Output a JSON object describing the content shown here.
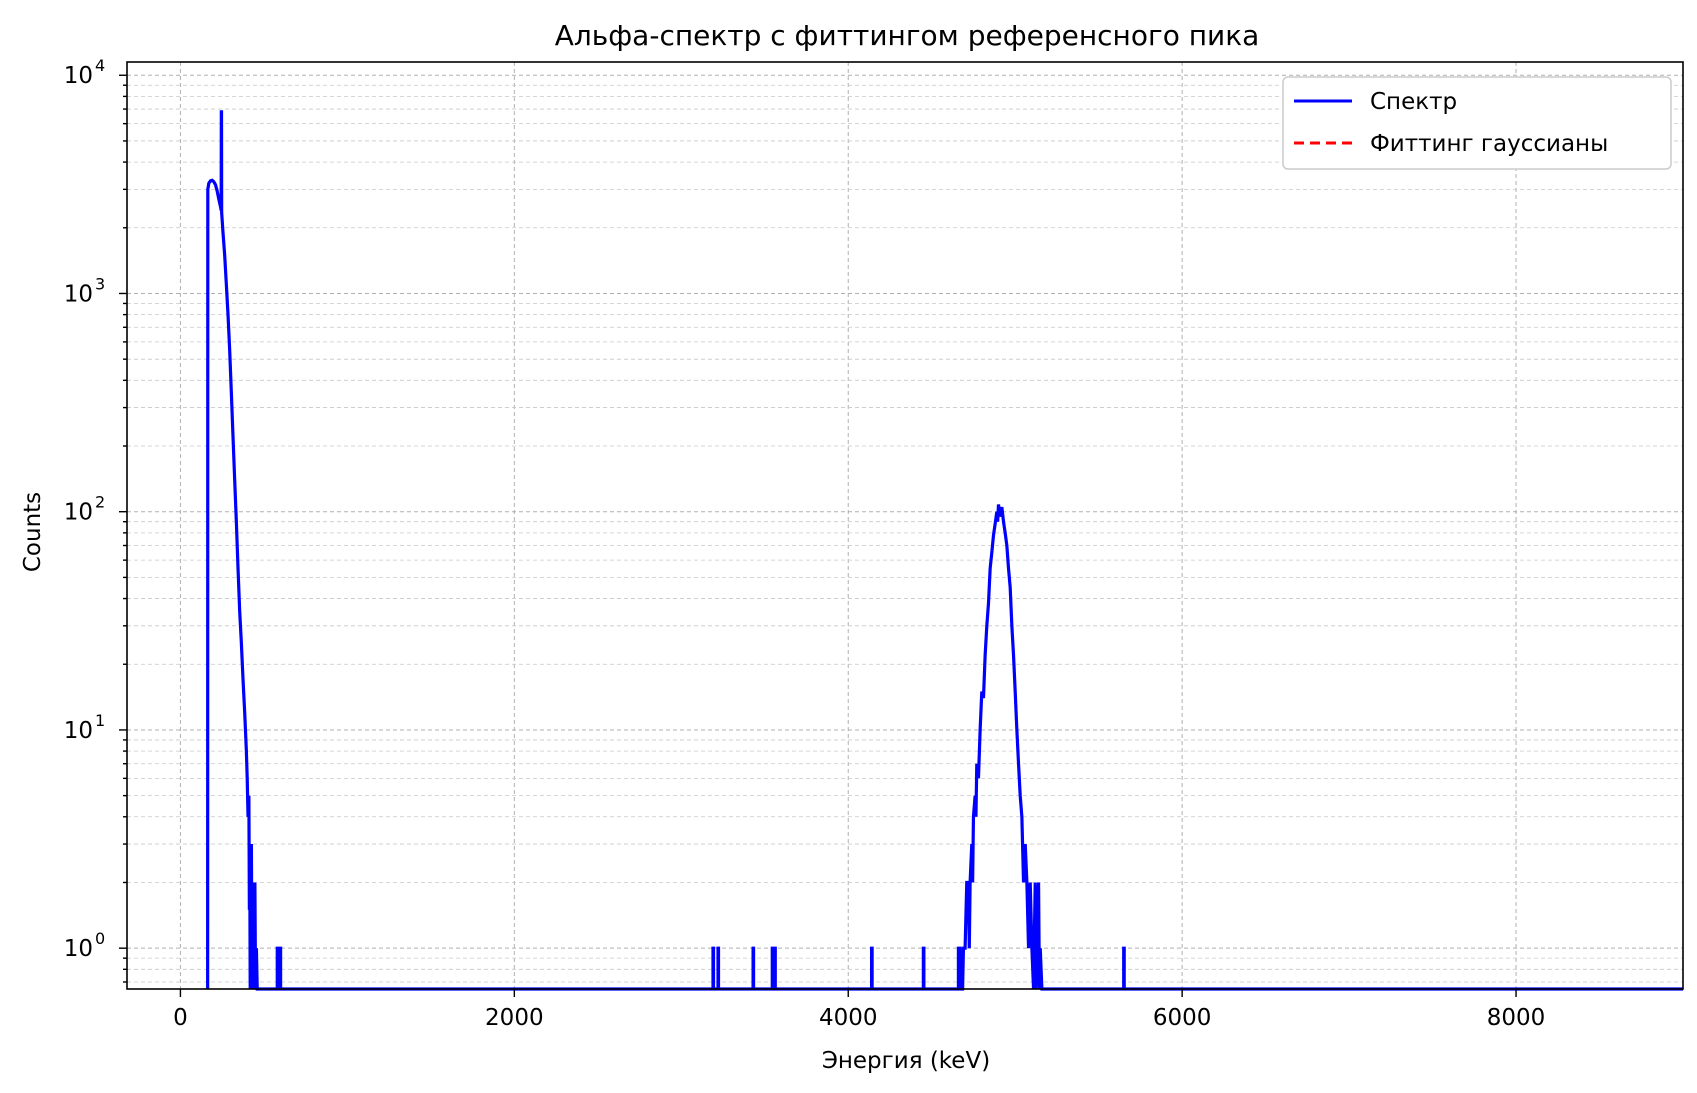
{
  "chart_data": {
    "type": "line",
    "title": "Альфа-спектр с фиттингом референсного пика",
    "xlabel": "Энергия (keV)",
    "ylabel": "Counts",
    "yscale": "log",
    "xlim": [
      -320,
      9000
    ],
    "ylim": [
      0.65,
      11500
    ],
    "xticks": [
      0,
      2000,
      4000,
      6000,
      8000
    ],
    "xtick_labels": [
      "0",
      "2000",
      "4000",
      "6000",
      "8000"
    ],
    "yticks": [
      1,
      10,
      100,
      1000,
      10000
    ],
    "ytick_labels": [
      {
        "base": "10",
        "exp": "0"
      },
      {
        "base": "10",
        "exp": "1"
      },
      {
        "base": "10",
        "exp": "2"
      },
      {
        "base": "10",
        "exp": "3"
      },
      {
        "base": "10",
        "exp": "4"
      }
    ],
    "grid": true,
    "legend_position": "top-right",
    "series": [
      {
        "name": "Спектр",
        "color": "#0000ff",
        "style": "solid",
        "points": [
          [
            163,
            0.65
          ],
          [
            164,
            3000
          ],
          [
            170,
            3200
          ],
          [
            180,
            3280
          ],
          [
            190,
            3300
          ],
          [
            200,
            3250
          ],
          [
            210,
            3150
          ],
          [
            220,
            2950
          ],
          [
            230,
            2700
          ],
          [
            240,
            2500
          ],
          [
            244,
            2400
          ],
          [
            245,
            6800
          ],
          [
            246,
            6800
          ],
          [
            247,
            2350
          ],
          [
            255,
            1900
          ],
          [
            265,
            1500
          ],
          [
            275,
            1100
          ],
          [
            285,
            800
          ],
          [
            295,
            550
          ],
          [
            305,
            350
          ],
          [
            315,
            220
          ],
          [
            325,
            140
          ],
          [
            335,
            90
          ],
          [
            345,
            55
          ],
          [
            355,
            35
          ],
          [
            365,
            25
          ],
          [
            375,
            17
          ],
          [
            385,
            12
          ],
          [
            395,
            8
          ],
          [
            400,
            6
          ],
          [
            405,
            4
          ],
          [
            410,
            5
          ],
          [
            413,
            1.5
          ],
          [
            415,
            3
          ],
          [
            418,
            0.65
          ],
          [
            420,
            2
          ],
          [
            423,
            0.65
          ],
          [
            425,
            3
          ],
          [
            428,
            1
          ],
          [
            432,
            2
          ],
          [
            436,
            0.65
          ],
          [
            440,
            1
          ],
          [
            443,
            0.65
          ],
          [
            446,
            2
          ],
          [
            450,
            0.65
          ],
          [
            455,
            1
          ],
          [
            460,
            0.65
          ],
          [
            470,
            0.65
          ],
          [
            580,
            0.65
          ],
          [
            580,
            1
          ],
          [
            585,
            1
          ],
          [
            585,
            0.65
          ],
          [
            595,
            0.65
          ],
          [
            595,
            1
          ],
          [
            600,
            1
          ],
          [
            600,
            0.65
          ],
          [
            3190,
            0.65
          ],
          [
            3190,
            1
          ],
          [
            3193,
            1
          ],
          [
            3193,
            0.65
          ],
          [
            3220,
            0.65
          ],
          [
            3220,
            1
          ],
          [
            3223,
            1
          ],
          [
            3223,
            0.65
          ],
          [
            3430,
            0.65
          ],
          [
            3430,
            1
          ],
          [
            3433,
            1
          ],
          [
            3433,
            0.65
          ],
          [
            3545,
            0.65
          ],
          [
            3545,
            1
          ],
          [
            3548,
            1
          ],
          [
            3548,
            0.65
          ],
          [
            3560,
            0.65
          ],
          [
            3560,
            1
          ],
          [
            3563,
            1
          ],
          [
            3563,
            0.65
          ],
          [
            4140,
            0.65
          ],
          [
            4140,
            1
          ],
          [
            4143,
            1
          ],
          [
            4143,
            0.65
          ],
          [
            4450,
            0.65
          ],
          [
            4450,
            1
          ],
          [
            4453,
            1
          ],
          [
            4453,
            0.65
          ],
          [
            4660,
            0.65
          ],
          [
            4660,
            1
          ],
          [
            4670,
            1
          ],
          [
            4675,
            0.65
          ],
          [
            4685,
            0.65
          ],
          [
            4690,
            1
          ],
          [
            4700,
            1
          ],
          [
            4710,
            2
          ],
          [
            4720,
            2
          ],
          [
            4725,
            1
          ],
          [
            4730,
            2
          ],
          [
            4740,
            3
          ],
          [
            4745,
            2
          ],
          [
            4750,
            4
          ],
          [
            4760,
            5
          ],
          [
            4765,
            4
          ],
          [
            4770,
            7
          ],
          [
            4780,
            6
          ],
          [
            4790,
            10
          ],
          [
            4800,
            15
          ],
          [
            4810,
            14
          ],
          [
            4820,
            22
          ],
          [
            4830,
            30
          ],
          [
            4840,
            38
          ],
          [
            4850,
            55
          ],
          [
            4860,
            65
          ],
          [
            4870,
            78
          ],
          [
            4880,
            88
          ],
          [
            4890,
            100
          ],
          [
            4895,
            90
          ],
          [
            4900,
            108
          ],
          [
            4910,
            95
          ],
          [
            4920,
            105
          ],
          [
            4930,
            90
          ],
          [
            4940,
            80
          ],
          [
            4950,
            70
          ],
          [
            4960,
            55
          ],
          [
            4970,
            45
          ],
          [
            4980,
            30
          ],
          [
            4990,
            22
          ],
          [
            5000,
            15
          ],
          [
            5010,
            10
          ],
          [
            5020,
            7
          ],
          [
            5030,
            5
          ],
          [
            5040,
            4
          ],
          [
            5050,
            2
          ],
          [
            5060,
            3
          ],
          [
            5070,
            2
          ],
          [
            5080,
            1
          ],
          [
            5090,
            2
          ],
          [
            5100,
            1
          ],
          [
            5110,
            0.65
          ],
          [
            5120,
            2
          ],
          [
            5125,
            0.65
          ],
          [
            5130,
            1
          ],
          [
            5140,
            2
          ],
          [
            5145,
            0.65
          ],
          [
            5150,
            1
          ],
          [
            5160,
            0.65
          ],
          [
            5650,
            0.65
          ],
          [
            5650,
            1
          ],
          [
            5653,
            1
          ],
          [
            5653,
            0.65
          ],
          [
            9000,
            0.65
          ]
        ]
      },
      {
        "name": "Фиттинг гауссианы",
        "color": "#ff0000",
        "style": "dashed",
        "points": []
      }
    ]
  }
}
